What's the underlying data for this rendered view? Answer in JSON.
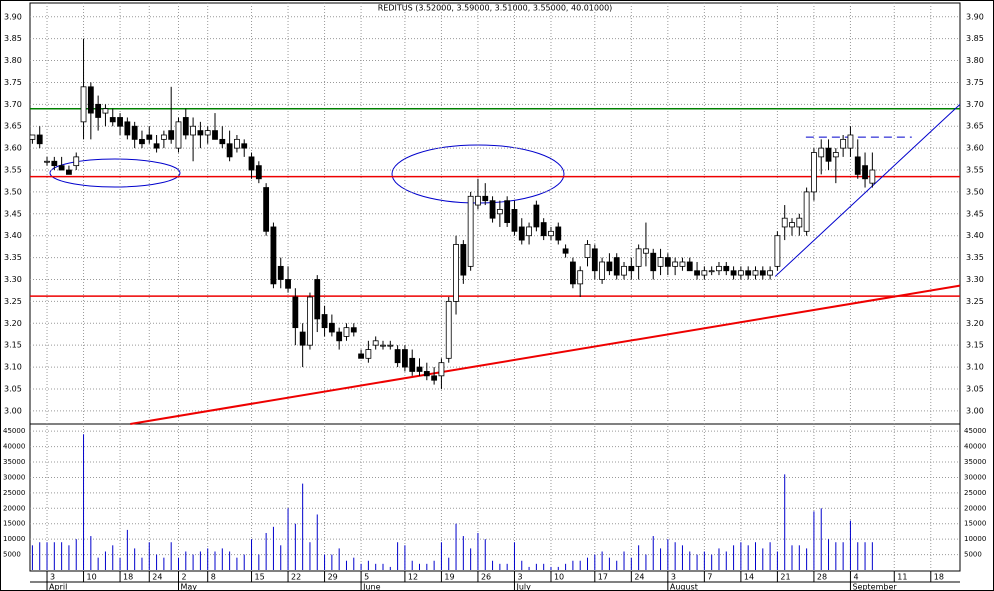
{
  "chart_data": {
    "type": "candlestick",
    "title": "REDITUS (3.52000, 3.59000, 3.51000, 3.55000, 40.01000)",
    "xlim": [
      -0.33,
      127
    ],
    "xticks": [
      {
        "value": 2,
        "label": "3"
      },
      {
        "value": 7,
        "label": "10"
      },
      {
        "value": 12,
        "label": "18"
      },
      {
        "value": 16,
        "label": "24"
      },
      {
        "value": 20,
        "label": "2"
      },
      {
        "value": 24,
        "label": "8"
      },
      {
        "value": 30,
        "label": "15"
      },
      {
        "value": 35,
        "label": "22"
      },
      {
        "value": 40,
        "label": "29"
      },
      {
        "value": 45,
        "label": "5"
      },
      {
        "value": 51,
        "label": "12"
      },
      {
        "value": 56,
        "label": "19"
      },
      {
        "value": 61,
        "label": "26"
      },
      {
        "value": 66,
        "label": "3"
      },
      {
        "value": 71,
        "label": "10"
      },
      {
        "value": 77,
        "label": "17"
      },
      {
        "value": 82,
        "label": "24"
      },
      {
        "value": 87,
        "label": "3"
      },
      {
        "value": 92,
        "label": "7"
      },
      {
        "value": 97,
        "label": "14"
      },
      {
        "value": 102,
        "label": "21"
      },
      {
        "value": 107,
        "label": "28"
      },
      {
        "value": 112,
        "label": "4"
      },
      {
        "value": 118,
        "label": "11"
      },
      {
        "value": 123,
        "label": "18"
      }
    ],
    "month_ticks": [
      {
        "value": 2,
        "label": "April"
      },
      {
        "value": 20,
        "label": "May"
      },
      {
        "value": 45,
        "label": "June"
      },
      {
        "value": 66,
        "label": "July"
      },
      {
        "value": 87,
        "label": "August"
      },
      {
        "value": 112,
        "label": "September"
      }
    ],
    "ylim": [
      2.97,
      3.92
    ],
    "yticks": [
      {
        "value": 3.0,
        "label": "3.00"
      },
      3.05,
      {
        "value": 3.1,
        "label": "3.10"
      },
      3.15,
      {
        "value": 3.2,
        "label": "3.20"
      },
      3.25,
      {
        "value": 3.3,
        "label": "3.30"
      },
      3.35,
      {
        "value": 3.4,
        "label": "3.40"
      },
      3.45,
      {
        "value": 3.5,
        "label": "3.50"
      },
      3.55,
      {
        "value": 3.6,
        "label": "3.60"
      },
      3.65,
      {
        "value": 3.7,
        "label": "3.70"
      },
      3.75,
      {
        "value": 3.8,
        "label": "3.80"
      },
      3.85,
      {
        "value": 3.9,
        "label": "3.90"
      }
    ],
    "grid": true,
    "open": [
      3.62,
      3.63,
      3.57,
      3.57,
      3.56,
      3.55,
      3.56,
      3.66,
      3.74,
      3.7,
      3.68,
      3.67,
      3.67,
      3.66,
      3.65,
      3.62,
      3.63,
      3.61,
      3.62,
      3.64,
      3.6,
      3.67,
      3.63,
      3.64,
      3.63,
      3.64,
      3.62,
      3.61,
      3.6,
      3.61,
      3.58,
      3.56,
      3.51,
      3.42,
      3.33,
      3.3,
      3.26,
      3.18,
      3.15,
      3.3,
      3.22,
      3.2,
      3.18,
      3.17,
      3.19,
      3.13,
      3.12,
      3.15,
      3.15,
      3.15,
      3.14,
      3.14,
      3.12,
      3.1,
      3.09,
      3.08,
      3.08,
      3.12,
      3.25,
      3.38,
      3.33,
      3.47,
      3.49,
      3.48,
      3.45,
      3.48,
      3.46,
      3.42,
      3.4,
      3.47,
      3.43,
      3.4,
      3.42,
      3.37,
      3.34,
      3.29,
      3.35,
      3.37,
      3.3,
      3.34,
      3.35,
      3.31,
      3.33,
      3.33,
      3.36,
      3.36,
      3.33,
      3.35,
      3.33,
      3.33,
      3.34,
      3.32,
      3.31,
      3.32,
      3.32,
      3.33,
      3.32,
      3.31,
      3.32,
      3.31,
      3.32,
      3.31,
      3.33,
      3.42,
      3.42,
      3.42,
      3.41,
      3.5,
      3.58,
      3.6,
      3.58,
      3.6,
      3.6,
      3.58,
      3.56,
      3.52
    ],
    "high": [
      3.63,
      3.65,
      3.58,
      3.58,
      3.58,
      3.56,
      3.59,
      3.85,
      3.75,
      3.72,
      3.7,
      3.69,
      3.68,
      3.67,
      3.66,
      3.64,
      3.65,
      3.63,
      3.64,
      3.74,
      3.67,
      3.69,
      3.67,
      3.66,
      3.65,
      3.68,
      3.65,
      3.64,
      3.63,
      3.62,
      3.59,
      3.57,
      3.52,
      3.43,
      3.35,
      3.33,
      3.28,
      3.2,
      3.27,
      3.31,
      3.24,
      3.22,
      3.19,
      3.2,
      3.2,
      3.14,
      3.16,
      3.17,
      3.16,
      3.16,
      3.15,
      3.15,
      3.14,
      3.12,
      3.11,
      3.1,
      3.12,
      3.26,
      3.4,
      3.39,
      3.5,
      3.53,
      3.52,
      3.49,
      3.48,
      3.49,
      3.48,
      3.44,
      3.43,
      3.48,
      3.44,
      3.42,
      3.43,
      3.38,
      3.35,
      3.33,
      3.39,
      3.38,
      3.35,
      3.36,
      3.36,
      3.34,
      3.35,
      3.38,
      3.43,
      3.37,
      3.37,
      3.36,
      3.35,
      3.35,
      3.35,
      3.34,
      3.33,
      3.33,
      3.34,
      3.34,
      3.33,
      3.33,
      3.33,
      3.33,
      3.33,
      3.33,
      3.41,
      3.47,
      3.44,
      3.45,
      3.51,
      3.6,
      3.62,
      3.62,
      3.6,
      3.63,
      3.65,
      3.62,
      3.59,
      3.59
    ],
    "low": [
      3.61,
      3.6,
      3.56,
      3.55,
      3.55,
      3.54,
      3.55,
      3.62,
      3.62,
      3.64,
      3.65,
      3.65,
      3.63,
      3.62,
      3.6,
      3.6,
      3.61,
      3.59,
      3.6,
      3.61,
      3.59,
      3.62,
      3.57,
      3.6,
      3.61,
      3.62,
      3.6,
      3.57,
      3.59,
      3.58,
      3.53,
      3.52,
      3.4,
      3.28,
      3.28,
      3.27,
      3.15,
      3.1,
      3.14,
      3.18,
      3.17,
      3.17,
      3.14,
      3.16,
      3.17,
      3.12,
      3.11,
      3.14,
      3.14,
      3.14,
      3.1,
      3.09,
      3.08,
      3.08,
      3.07,
      3.06,
      3.05,
      3.11,
      3.22,
      3.29,
      3.32,
      3.46,
      3.47,
      3.43,
      3.42,
      3.42,
      3.4,
      3.38,
      3.38,
      3.41,
      3.39,
      3.39,
      3.38,
      3.35,
      3.28,
      3.26,
      3.33,
      3.3,
      3.29,
      3.31,
      3.3,
      3.3,
      3.3,
      3.3,
      3.33,
      3.3,
      3.31,
      3.31,
      3.31,
      3.32,
      3.32,
      3.3,
      3.3,
      3.31,
      3.31,
      3.31,
      3.3,
      3.3,
      3.3,
      3.3,
      3.3,
      3.3,
      3.32,
      3.39,
      3.4,
      3.4,
      3.4,
      3.48,
      3.54,
      3.55,
      3.52,
      3.58,
      3.58,
      3.53,
      3.51,
      3.51
    ],
    "close": [
      3.63,
      3.61,
      3.57,
      3.56,
      3.55,
      3.54,
      3.58,
      3.74,
      3.68,
      3.67,
      3.69,
      3.66,
      3.65,
      3.63,
      3.62,
      3.61,
      3.62,
      3.6,
      3.63,
      3.62,
      3.66,
      3.63,
      3.65,
      3.63,
      3.64,
      3.62,
      3.61,
      3.58,
      3.62,
      3.6,
      3.55,
      3.53,
      3.41,
      3.29,
      3.3,
      3.28,
      3.19,
      3.15,
      3.26,
      3.21,
      3.19,
      3.18,
      3.16,
      3.19,
      3.18,
      3.12,
      3.14,
      3.16,
      3.15,
      3.15,
      3.11,
      3.1,
      3.09,
      3.09,
      3.08,
      3.07,
      3.11,
      3.25,
      3.38,
      3.31,
      3.49,
      3.49,
      3.48,
      3.44,
      3.46,
      3.43,
      3.41,
      3.39,
      3.42,
      3.42,
      3.4,
      3.41,
      3.39,
      3.36,
      3.29,
      3.32,
      3.38,
      3.32,
      3.34,
      3.32,
      3.31,
      3.33,
      3.32,
      3.37,
      3.37,
      3.32,
      3.35,
      3.33,
      3.34,
      3.34,
      3.32,
      3.31,
      3.32,
      3.32,
      3.33,
      3.32,
      3.31,
      3.32,
      3.31,
      3.32,
      3.31,
      3.32,
      3.4,
      3.44,
      3.43,
      3.44,
      3.5,
      3.59,
      3.6,
      3.57,
      3.59,
      3.62,
      3.63,
      3.54,
      3.53,
      3.55
    ],
    "volume": [
      8000,
      9000,
      9000,
      9000,
      9000,
      8000,
      10000,
      44000,
      11000,
      4000,
      6000,
      8000,
      4000,
      13000,
      7000,
      4000,
      9000,
      5000,
      4000,
      9000,
      4000,
      6000,
      5000,
      6000,
      7000,
      6000,
      7000,
      6000,
      4000,
      5000,
      10000,
      5000,
      12000,
      14000,
      8000,
      20000,
      15000,
      28000,
      9000,
      18000,
      5000,
      5000,
      7000,
      3000,
      4000,
      2000,
      3000,
      2000,
      2000,
      1000,
      9000,
      8000,
      3000,
      2000,
      2000,
      3000,
      9000,
      4000,
      15000,
      11000,
      7000,
      12000,
      10000,
      3000,
      2000,
      2000,
      9000,
      3000,
      1000,
      2000,
      2000,
      1000,
      1000,
      2000,
      3000,
      3000,
      4000,
      5000,
      6000,
      4000,
      3000,
      6000,
      4000,
      8000,
      5000,
      11000,
      7000,
      10000,
      9000,
      8000,
      6000,
      5000,
      6000,
      5000,
      7000,
      6000,
      8000,
      9000,
      8000,
      9000,
      7000,
      9000,
      6000,
      31000,
      8000,
      8000,
      7000,
      19000,
      20000,
      10000,
      9000,
      9000,
      16000,
      9000,
      9000,
      9000
    ],
    "volume_color": "#0000cc",
    "vlim": [
      0,
      47000
    ],
    "vticks": [
      5000,
      10000,
      15000,
      20000,
      25000,
      30000,
      35000,
      40000,
      45000
    ],
    "levels": [
      {
        "value": 3.69,
        "color": "#008000"
      },
      {
        "value": 3.535,
        "color": "#ee0000"
      },
      {
        "value": 3.262,
        "color": "#ee0000"
      }
    ],
    "trendlines": [
      {
        "from": [
          13.4,
          2.97
        ],
        "to": [
          127,
          3.286
        ],
        "color": "#ee0000",
        "dashed": false
      },
      {
        "from": [
          101.7,
          3.307
        ],
        "to": [
          127,
          3.7
        ],
        "color": "#0000cc",
        "dashed": false
      },
      {
        "from": [
          105.9,
          3.625
        ],
        "to": [
          120.4,
          3.625
        ],
        "color": "#0000cc",
        "dashed": true
      }
    ]
  }
}
